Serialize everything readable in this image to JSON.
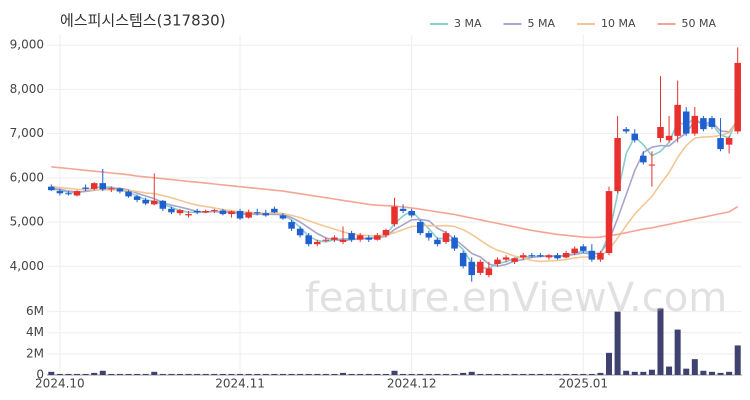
{
  "chart_data": {
    "type": "candlestick",
    "title": "에스피시스템스(317830)",
    "watermark": "feature.enViewV.com",
    "legend": "top-right",
    "grid": true,
    "up_color": "#e8312f",
    "down_color": "#1f5fcf",
    "categories": [
      null,
      "2024.10",
      null,
      null,
      null,
      null,
      null,
      null,
      null,
      null,
      null,
      null,
      null,
      null,
      null,
      null,
      null,
      null,
      null,
      null,
      null,
      null,
      "2024.11",
      null,
      null,
      null,
      null,
      null,
      null,
      null,
      null,
      null,
      null,
      null,
      null,
      null,
      null,
      null,
      null,
      null,
      null,
      null,
      "2024.12",
      null,
      null,
      null,
      null,
      null,
      null,
      null,
      null,
      null,
      null,
      null,
      null,
      null,
      null,
      null,
      null,
      null,
      null,
      null,
      "2025.01",
      null,
      null,
      null,
      null,
      null,
      null,
      null,
      null,
      null,
      null,
      null,
      null,
      null,
      null,
      null,
      null,
      null,
      null
    ],
    "open": [
      5800,
      5700,
      5650,
      5600,
      5780,
      5750,
      5880,
      5740,
      5760,
      5690,
      5580,
      5500,
      5400,
      5480,
      5300,
      5200,
      5150,
      5250,
      5220,
      5250,
      5260,
      5180,
      5250,
      5100,
      5220,
      5200,
      5300,
      5150,
      5000,
      4850,
      4700,
      4500,
      4600,
      4600,
      4550,
      4750,
      4600,
      4650,
      4600,
      4700,
      4950,
      5300,
      5250,
      5000,
      4750,
      4600,
      4550,
      4650,
      4300,
      4100,
      3850,
      3800,
      4050,
      4150,
      4100,
      4200,
      4250,
      4250,
      4200,
      4250,
      4200,
      4300,
      4450,
      4350,
      4150,
      4300,
      5700,
      7100,
      7000,
      6500,
      6300,
      6900,
      6850,
      6950,
      7500,
      7000,
      7350,
      7350,
      6900,
      6750,
      7050
    ],
    "high": [
      5850,
      5750,
      5700,
      5720,
      5850,
      5900,
      6200,
      5800,
      5780,
      5720,
      5620,
      5550,
      6100,
      5500,
      5350,
      5300,
      5250,
      5300,
      5280,
      5300,
      5300,
      5260,
      5300,
      5280,
      5300,
      5280,
      5350,
      5200,
      5050,
      4900,
      4750,
      4600,
      4650,
      4700,
      4900,
      4800,
      4750,
      4700,
      4750,
      4850,
      5550,
      5400,
      5300,
      5050,
      4800,
      4650,
      4800,
      4700,
      4350,
      4200,
      4150,
      4100,
      4200,
      4250,
      4200,
      4300,
      4300,
      4300,
      4280,
      4300,
      4350,
      4450,
      4500,
      4500,
      4350,
      5800,
      7400,
      7150,
      7100,
      6600,
      6600,
      8300,
      7400,
      8200,
      7600,
      7600,
      7400,
      7400,
      7350,
      6950,
      8950
    ],
    "low": [
      5700,
      5600,
      5600,
      5580,
      5700,
      5720,
      5700,
      5680,
      5650,
      5550,
      5450,
      5380,
      5380,
      5250,
      5180,
      5150,
      5100,
      5180,
      5200,
      5200,
      5150,
      5100,
      5050,
      5080,
      5150,
      5120,
      5200,
      5050,
      4800,
      4650,
      4450,
      4450,
      4550,
      4550,
      4500,
      4550,
      4550,
      4550,
      4580,
      4650,
      4900,
      5200,
      5100,
      4700,
      4580,
      4450,
      4500,
      4350,
      3950,
      3650,
      3800,
      3750,
      4000,
      4100,
      4050,
      4150,
      4200,
      4200,
      4150,
      4150,
      4180,
      4250,
      4300,
      4100,
      4100,
      4250,
      5650,
      7000,
      6800,
      6300,
      5800,
      6800,
      6800,
      6800,
      6950,
      6950,
      7050,
      7100,
      6600,
      6550,
      7000
    ],
    "close": [
      5720,
      5650,
      5640,
      5700,
      5750,
      5880,
      5740,
      5760,
      5690,
      5580,
      5500,
      5420,
      5480,
      5300,
      5220,
      5270,
      5180,
      5220,
      5250,
      5270,
      5180,
      5240,
      5080,
      5220,
      5200,
      5150,
      5220,
      5080,
      4850,
      4700,
      4500,
      4550,
      4600,
      4650,
      4600,
      4600,
      4700,
      4600,
      4700,
      4820,
      5350,
      5250,
      5150,
      4750,
      4650,
      4500,
      4750,
      4400,
      4000,
      3800,
      4100,
      3950,
      4150,
      4200,
      4180,
      4250,
      4230,
      4220,
      4250,
      4180,
      4300,
      4400,
      4350,
      4150,
      4300,
      5700,
      6900,
      7050,
      6850,
      6350,
      6300,
      7150,
      6950,
      7650,
      7000,
      7400,
      7100,
      7150,
      6650,
      6900,
      8600
    ],
    "series": [
      {
        "name": "3 MA",
        "color": "#86cfcf",
        "values": [
          5750,
          5720,
          5670,
          5660,
          5700,
          5780,
          5790,
          5790,
          5730,
          5680,
          5590,
          5500,
          5470,
          5400,
          5330,
          5260,
          5220,
          5220,
          5220,
          5250,
          5230,
          5230,
          5170,
          5180,
          5170,
          5190,
          5190,
          5150,
          5050,
          4880,
          4680,
          4580,
          4550,
          4600,
          4620,
          4620,
          4630,
          4630,
          4670,
          4710,
          4960,
          5140,
          5250,
          5050,
          4850,
          4630,
          4630,
          4550,
          4380,
          4070,
          3970,
          3950,
          4070,
          4100,
          4180,
          4210,
          4220,
          4230,
          4230,
          4220,
          4240,
          4290,
          4350,
          4300,
          4270,
          4720,
          5630,
          6550,
          6930,
          6750,
          6500,
          6600,
          6800,
          7250,
          7200,
          7350,
          7170,
          7220,
          6970,
          6900,
          7380
        ]
      },
      {
        "name": "5 MA",
        "color": "#aaa3cc",
        "values": [
          5760,
          5740,
          5700,
          5680,
          5690,
          5720,
          5740,
          5770,
          5760,
          5730,
          5650,
          5590,
          5530,
          5440,
          5380,
          5340,
          5290,
          5240,
          5230,
          5240,
          5220,
          5230,
          5200,
          5200,
          5180,
          5180,
          5170,
          5170,
          5100,
          5000,
          4870,
          4740,
          4640,
          4600,
          4580,
          4600,
          4630,
          4630,
          4640,
          4680,
          4830,
          4940,
          5050,
          5060,
          5030,
          4860,
          4760,
          4610,
          4460,
          4290,
          4210,
          4050,
          4000,
          4040,
          4120,
          4150,
          4200,
          4220,
          4230,
          4230,
          4240,
          4270,
          4300,
          4280,
          4300,
          4580,
          5080,
          5620,
          6160,
          6570,
          6690,
          6730,
          6720,
          6880,
          7010,
          7290,
          7220,
          7260,
          7060,
          7040,
          7280
        ]
      },
      {
        "name": "10 MA",
        "color": "#f2c796",
        "values": [
          5800,
          5780,
          5760,
          5740,
          5730,
          5730,
          5730,
          5730,
          5730,
          5710,
          5690,
          5660,
          5640,
          5600,
          5550,
          5490,
          5430,
          5380,
          5350,
          5320,
          5280,
          5260,
          5230,
          5220,
          5210,
          5200,
          5210,
          5190,
          5150,
          5100,
          5030,
          4960,
          4900,
          4840,
          4780,
          4730,
          4710,
          4690,
          4690,
          4700,
          4760,
          4830,
          4900,
          4910,
          4920,
          4910,
          4920,
          4900,
          4830,
          4720,
          4590,
          4460,
          4360,
          4300,
          4230,
          4190,
          4130,
          4110,
          4120,
          4130,
          4150,
          4190,
          4210,
          4210,
          4230,
          4370,
          4640,
          4920,
          5180,
          5380,
          5580,
          5860,
          6120,
          6460,
          6730,
          6900,
          6920,
          6930,
          6960,
          7020,
          7250
        ]
      },
      {
        "name": "50 MA",
        "color": "#f5a595",
        "values": [
          6250,
          6230,
          6210,
          6190,
          6170,
          6150,
          6130,
          6110,
          6090,
          6070,
          6040,
          6020,
          6000,
          5980,
          5960,
          5940,
          5920,
          5900,
          5880,
          5860,
          5840,
          5820,
          5800,
          5780,
          5760,
          5740,
          5720,
          5700,
          5670,
          5640,
          5610,
          5580,
          5550,
          5520,
          5490,
          5460,
          5430,
          5400,
          5380,
          5370,
          5360,
          5340,
          5320,
          5290,
          5260,
          5230,
          5200,
          5170,
          5130,
          5090,
          5050,
          5010,
          4970,
          4930,
          4890,
          4850,
          4810,
          4780,
          4750,
          4720,
          4700,
          4680,
          4660,
          4650,
          4660,
          4690,
          4720,
          4760,
          4800,
          4840,
          4870,
          4910,
          4950,
          4990,
          5030,
          5070,
          5110,
          5150,
          5190,
          5230,
          5350
        ]
      }
    ],
    "ylim": [
      3350,
      9230
    ],
    "yticks": [
      {
        "value": 4000,
        "label": "4,000"
      },
      {
        "value": 5000,
        "label": "5,000"
      },
      {
        "value": 6000,
        "label": "6,000"
      },
      {
        "value": 7000,
        "label": "7,000"
      },
      {
        "value": 8000,
        "label": "8,000"
      },
      {
        "value": 9000,
        "label": "9,000"
      }
    ],
    "volume": {
      "color": "#3f4170",
      "ylim": [
        0,
        7.1
      ],
      "yticks": [
        0,
        {
          "value": 2,
          "label": "2M"
        },
        {
          "value": 4,
          "label": "4M"
        },
        {
          "value": 6,
          "label": "6M"
        }
      ],
      "values": [
        0.3,
        0.1,
        0.1,
        0.1,
        0.1,
        0.2,
        0.4,
        0.1,
        0.1,
        0.1,
        0.1,
        0.1,
        0.3,
        0.1,
        0.1,
        0.1,
        0.1,
        0.1,
        0.1,
        0.1,
        0.1,
        0.1,
        0.1,
        0.1,
        0.1,
        0.1,
        0.1,
        0.1,
        0.1,
        0.1,
        0.1,
        0.1,
        0.1,
        0.1,
        0.2,
        0.1,
        0.1,
        0.1,
        0.1,
        0.1,
        0.4,
        0.1,
        0.1,
        0.1,
        0.1,
        0.1,
        0.1,
        0.1,
        0.2,
        0.3,
        0.1,
        0.1,
        0.1,
        0.1,
        0.1,
        0.1,
        0.1,
        0.1,
        0.1,
        0.1,
        0.1,
        0.1,
        0.1,
        0.1,
        0.2,
        2.1,
        6.0,
        0.4,
        0.3,
        0.3,
        0.5,
        6.3,
        0.8,
        4.3,
        0.6,
        1.5,
        0.4,
        0.3,
        0.2,
        0.3,
        2.8
      ]
    }
  }
}
